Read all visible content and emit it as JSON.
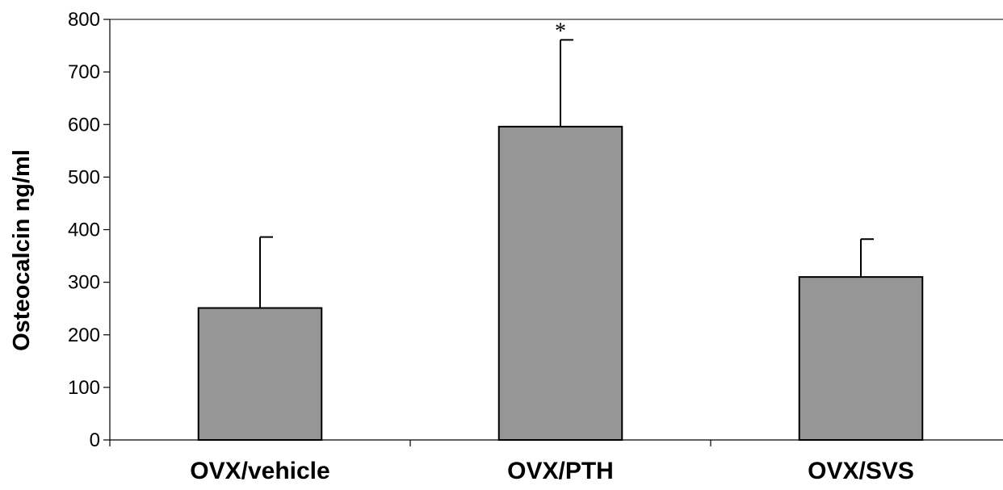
{
  "chart_data": {
    "type": "bar",
    "title": "",
    "xlabel": "",
    "ylabel": "Osteocalcin ng/ml",
    "categories": [
      "OVX/vehicle",
      "OVX/PTH",
      "OVX/SVS"
    ],
    "values": [
      251,
      596,
      310
    ],
    "error_upper": [
      386,
      761,
      382
    ],
    "annotations": [
      "",
      "*",
      ""
    ],
    "ylim": [
      0,
      800
    ],
    "yticks": [
      0,
      100,
      200,
      300,
      400,
      500,
      600,
      700,
      800
    ],
    "grid": false,
    "legend": "none",
    "bar_color": "#969696",
    "bar_edge_color": "#000000"
  }
}
